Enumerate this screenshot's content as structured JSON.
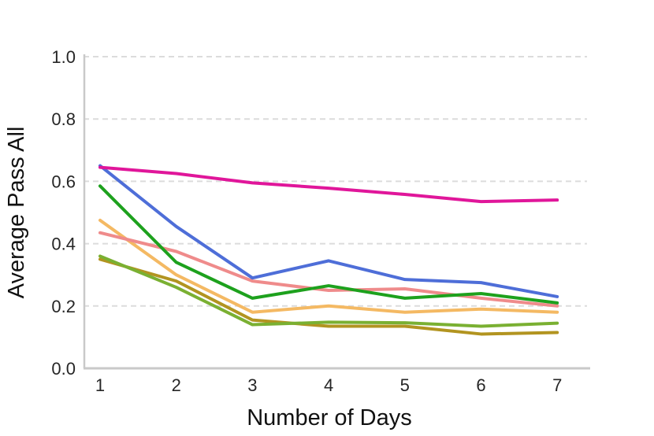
{
  "chart_data": {
    "type": "line",
    "title": "",
    "xlabel": "Number of Days",
    "ylabel": "Average Pass All",
    "x": [
      1,
      2,
      3,
      4,
      5,
      6,
      7
    ],
    "xtick_labels": [
      "1",
      "2",
      "3",
      "4",
      "5",
      "6",
      "7"
    ],
    "yticks": [
      0.0,
      0.2,
      0.4,
      0.6,
      0.8,
      1.0
    ],
    "ytick_labels": [
      "0.0",
      "0.2",
      "0.4",
      "0.6",
      "0.8",
      "1.0"
    ],
    "ylim": [
      0.0,
      1.0
    ],
    "grid": "horizontal-dashed",
    "legend": "none",
    "series": [
      {
        "name": "olive-line",
        "color": "#b29420",
        "values": [
          0.35,
          0.28,
          0.155,
          0.135,
          0.135,
          0.11,
          0.115
        ]
      },
      {
        "name": "light-green-line",
        "color": "#7ab032",
        "values": [
          0.36,
          0.26,
          0.14,
          0.148,
          0.146,
          0.135,
          0.145
        ]
      },
      {
        "name": "orange-line",
        "color": "#f4b963",
        "values": [
          0.475,
          0.3,
          0.18,
          0.2,
          0.18,
          0.19,
          0.18
        ]
      },
      {
        "name": "salmon-line",
        "color": "#ef8b8b",
        "values": [
          0.435,
          0.375,
          0.28,
          0.25,
          0.255,
          0.225,
          0.2
        ]
      },
      {
        "name": "dark-green-line",
        "color": "#1da11d",
        "values": [
          0.585,
          0.34,
          0.225,
          0.265,
          0.225,
          0.24,
          0.21
        ]
      },
      {
        "name": "blue-line",
        "color": "#4e6ed8",
        "values": [
          0.65,
          0.455,
          0.29,
          0.345,
          0.285,
          0.275,
          0.23
        ]
      },
      {
        "name": "magenta-line",
        "color": "#e0169a",
        "values": [
          0.645,
          0.625,
          0.595,
          0.578,
          0.558,
          0.535,
          0.54
        ]
      }
    ],
    "style": {
      "grid_color": "#dcdcdc",
      "spine_color": "#c9c9c9",
      "background": "#ffffff"
    }
  }
}
